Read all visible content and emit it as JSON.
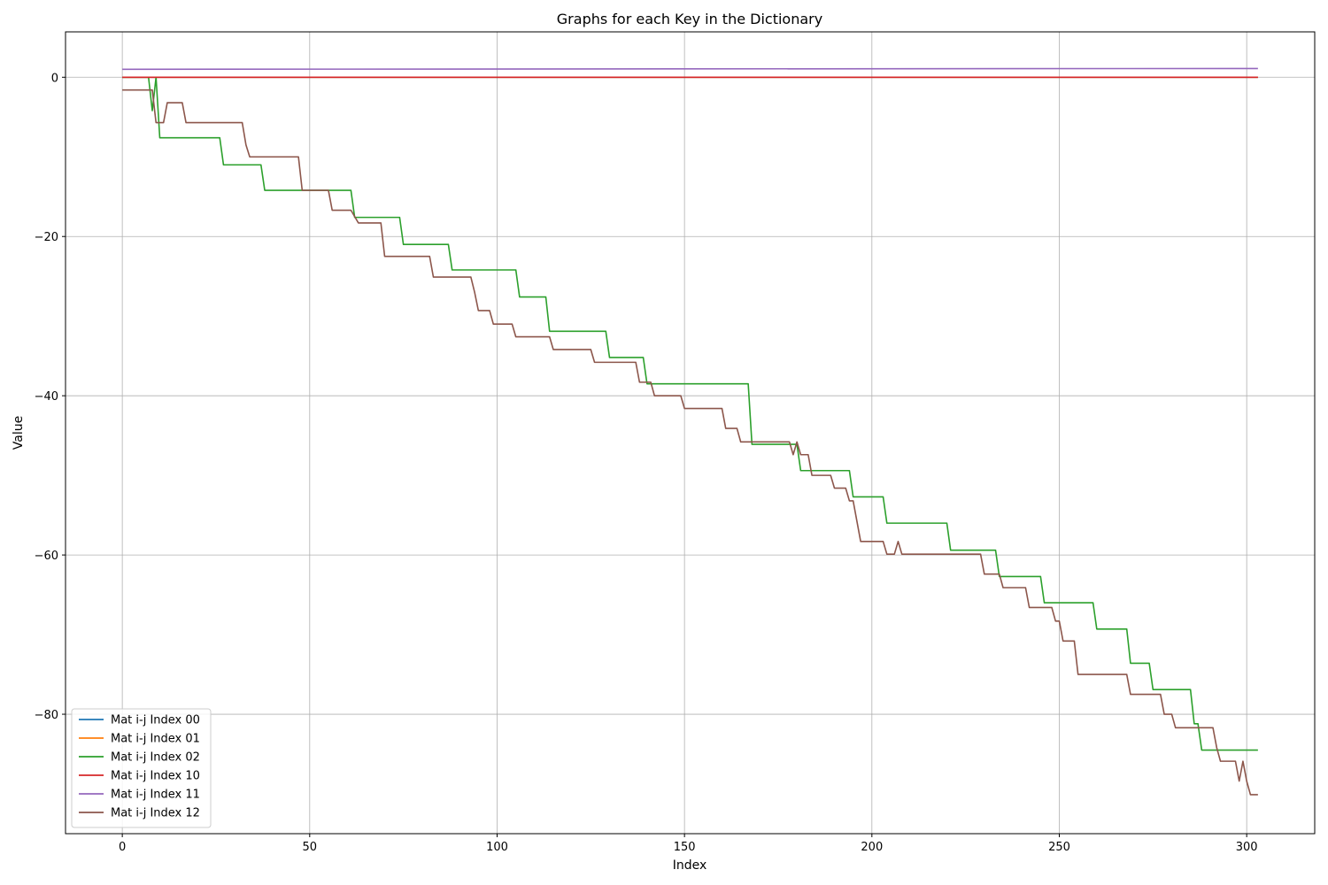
{
  "chart_data": {
    "type": "line",
    "title": "Graphs for each Key in the Dictionary",
    "xlabel": "Index",
    "ylabel": "Value",
    "xlim": [
      -15.15,
      318.15
    ],
    "ylim": [
      -95.0,
      5.7
    ],
    "xticks": [
      0,
      50,
      100,
      150,
      200,
      250,
      300
    ],
    "yticks": [
      0,
      -20,
      -40,
      -60,
      -80
    ],
    "grid": true,
    "legend_position": "lower-left",
    "series": [
      {
        "name": "Mat i-j Index 00",
        "color": "#1f77b4",
        "points": [
          [
            0,
            0.0
          ],
          [
            303,
            0.0
          ]
        ]
      },
      {
        "name": "Mat i-j Index 01",
        "color": "#ff7f0e",
        "points": [
          [
            0,
            0.0
          ],
          [
            303,
            0.0
          ]
        ]
      },
      {
        "name": "Mat i-j Index 02",
        "color": "#2ca02c",
        "points": [
          [
            0,
            0.0
          ],
          [
            7,
            0.0
          ],
          [
            8,
            -4.2
          ],
          [
            9,
            0.0
          ],
          [
            10,
            -7.6
          ],
          [
            26,
            -7.6
          ],
          [
            27,
            -11.0
          ],
          [
            37,
            -11.0
          ],
          [
            38,
            -14.2
          ],
          [
            61,
            -14.2
          ],
          [
            62,
            -17.6
          ],
          [
            74,
            -17.6
          ],
          [
            75,
            -21.0
          ],
          [
            87,
            -21.0
          ],
          [
            88,
            -24.2
          ],
          [
            105,
            -24.2
          ],
          [
            106,
            -27.6
          ],
          [
            113,
            -27.6
          ],
          [
            114,
            -31.9
          ],
          [
            129,
            -31.9
          ],
          [
            130,
            -35.2
          ],
          [
            139,
            -35.2
          ],
          [
            140,
            -38.5
          ],
          [
            167,
            -38.5
          ],
          [
            168,
            -46.1
          ],
          [
            180,
            -46.1
          ],
          [
            181,
            -49.4
          ],
          [
            194,
            -49.4
          ],
          [
            195,
            -52.7
          ],
          [
            203,
            -52.7
          ],
          [
            204,
            -56.0
          ],
          [
            220,
            -56.0
          ],
          [
            221,
            -59.4
          ],
          [
            233,
            -59.4
          ],
          [
            234,
            -62.7
          ],
          [
            245,
            -62.7
          ],
          [
            246,
            -66.0
          ],
          [
            259,
            -66.0
          ],
          [
            260,
            -69.3
          ],
          [
            268,
            -69.3
          ],
          [
            269,
            -73.6
          ],
          [
            274,
            -73.6
          ],
          [
            275,
            -76.9
          ],
          [
            285,
            -76.9
          ],
          [
            286,
            -81.2
          ],
          [
            287,
            -81.2
          ],
          [
            288,
            -84.5
          ],
          [
            303,
            -84.5
          ]
        ]
      },
      {
        "name": "Mat i-j Index 10",
        "color": "#d62728",
        "points": [
          [
            0,
            0.0
          ],
          [
            303,
            0.0
          ]
        ]
      },
      {
        "name": "Mat i-j Index 11",
        "color": "#9467bd",
        "points": [
          [
            0,
            1.0
          ],
          [
            303,
            1.1
          ]
        ]
      },
      {
        "name": "Mat i-j Index 12",
        "color": "#8c564b",
        "points": [
          [
            0,
            -1.6
          ],
          [
            7,
            -1.6
          ],
          [
            8,
            -1.6
          ],
          [
            9,
            -5.7
          ],
          [
            11,
            -5.7
          ],
          [
            12,
            -3.2
          ],
          [
            16,
            -3.2
          ],
          [
            17,
            -5.7
          ],
          [
            32,
            -5.7
          ],
          [
            33,
            -8.5
          ],
          [
            34,
            -10.0
          ],
          [
            47,
            -10.0
          ],
          [
            48,
            -14.2
          ],
          [
            55,
            -14.2
          ],
          [
            56,
            -16.7
          ],
          [
            61,
            -16.7
          ],
          [
            63,
            -18.3
          ],
          [
            69,
            -18.3
          ],
          [
            70,
            -22.5
          ],
          [
            82,
            -22.5
          ],
          [
            83,
            -25.1
          ],
          [
            93,
            -25.1
          ],
          [
            94,
            -27.0
          ],
          [
            95,
            -29.3
          ],
          [
            98,
            -29.3
          ],
          [
            99,
            -31.0
          ],
          [
            104,
            -31.0
          ],
          [
            105,
            -32.6
          ],
          [
            114,
            -32.6
          ],
          [
            115,
            -34.2
          ],
          [
            125,
            -34.2
          ],
          [
            126,
            -35.8
          ],
          [
            137,
            -35.8
          ],
          [
            138,
            -38.3
          ],
          [
            141,
            -38.3
          ],
          [
            142,
            -40.0
          ],
          [
            149,
            -40.0
          ],
          [
            150,
            -41.6
          ],
          [
            160,
            -41.6
          ],
          [
            161,
            -44.1
          ],
          [
            164,
            -44.1
          ],
          [
            165,
            -45.8
          ],
          [
            178,
            -45.8
          ],
          [
            179,
            -47.4
          ],
          [
            180,
            -45.8
          ],
          [
            181,
            -47.4
          ],
          [
            183,
            -47.4
          ],
          [
            184,
            -50.0
          ],
          [
            189,
            -50.0
          ],
          [
            190,
            -51.6
          ],
          [
            193,
            -51.6
          ],
          [
            194,
            -53.2
          ],
          [
            195,
            -53.2
          ],
          [
            197,
            -58.3
          ],
          [
            203,
            -58.3
          ],
          [
            204,
            -59.9
          ],
          [
            206,
            -59.9
          ],
          [
            207,
            -58.3
          ],
          [
            208,
            -59.9
          ],
          [
            229,
            -59.9
          ],
          [
            230,
            -62.4
          ],
          [
            234,
            -62.4
          ],
          [
            235,
            -64.1
          ],
          [
            241,
            -64.1
          ],
          [
            242,
            -66.6
          ],
          [
            248,
            -66.6
          ],
          [
            249,
            -68.3
          ],
          [
            250,
            -68.3
          ],
          [
            251,
            -70.8
          ],
          [
            254,
            -70.8
          ],
          [
            255,
            -75.0
          ],
          [
            268,
            -75.0
          ],
          [
            269,
            -77.5
          ],
          [
            277,
            -77.5
          ],
          [
            278,
            -80.0
          ],
          [
            280,
            -80.0
          ],
          [
            281,
            -81.7
          ],
          [
            291,
            -81.7
          ],
          [
            292,
            -84.2
          ],
          [
            293,
            -85.9
          ],
          [
            297,
            -85.9
          ],
          [
            298,
            -88.4
          ],
          [
            299,
            -85.9
          ],
          [
            300,
            -88.4
          ],
          [
            301,
            -90.1
          ],
          [
            303,
            -90.1
          ]
        ]
      }
    ]
  }
}
